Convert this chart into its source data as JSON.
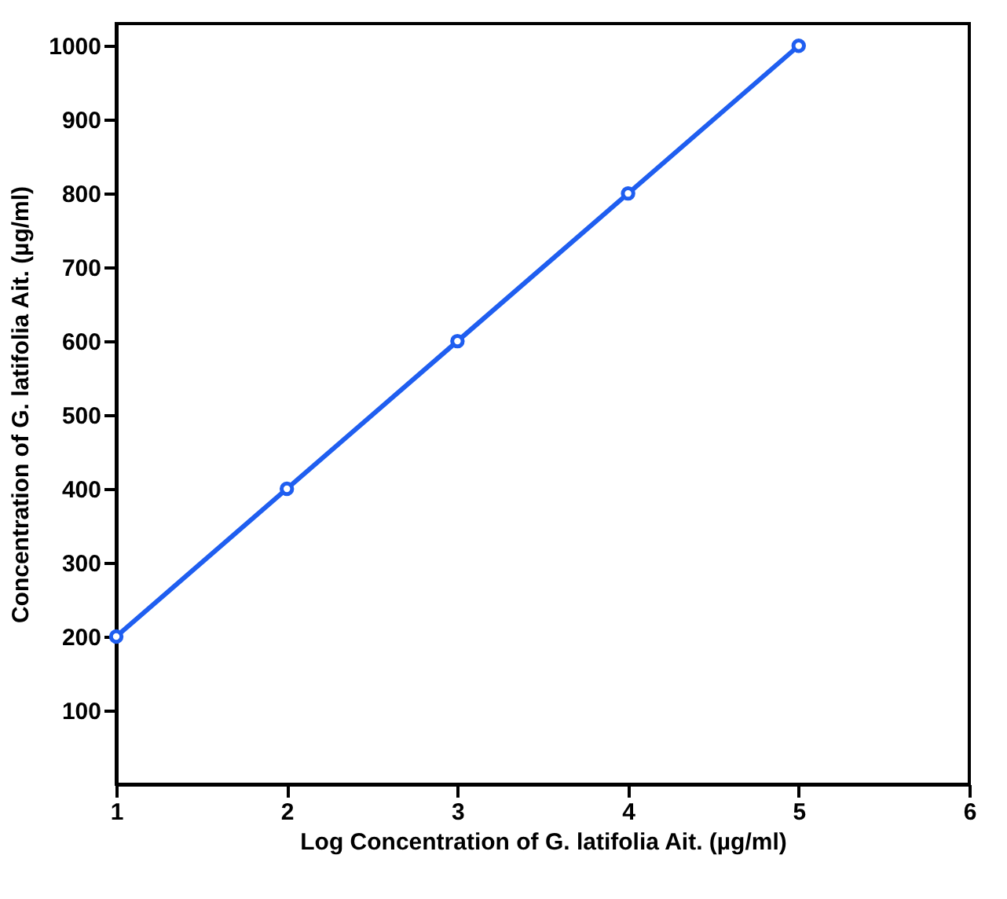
{
  "chart_data": {
    "type": "line",
    "xlabel": "Log Concentration of G. latifolia Ait. (µg/ml)",
    "ylabel": "Concentration of G. latifolia Ait. (µg/ml)",
    "x": [
      1,
      2,
      3,
      4,
      5
    ],
    "series": [
      {
        "color": "#1f5ef0",
        "values": [
          200,
          400,
          600,
          800,
          1000
        ]
      }
    ],
    "xlim": [
      1,
      6
    ],
    "xticks": [
      1,
      2,
      3,
      4,
      5,
      6
    ],
    "ylim": [
      0,
      1030
    ],
    "yticks": [
      100,
      200,
      300,
      400,
      500,
      600,
      700,
      800,
      900,
      1000
    ],
    "grid": false,
    "legend": false,
    "marker": "circle",
    "line_style": "solid"
  }
}
